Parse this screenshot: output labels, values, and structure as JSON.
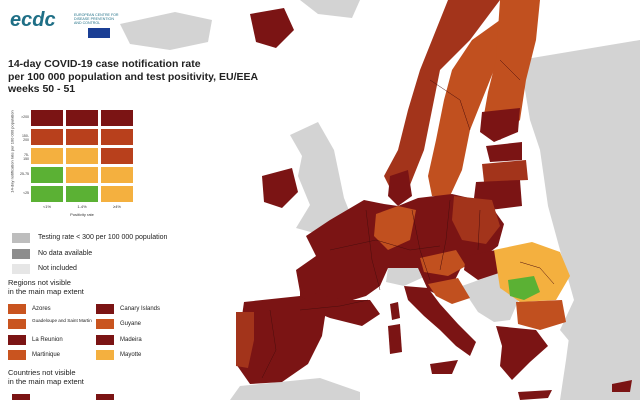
{
  "logo": {
    "word": "ecdc",
    "subtitle_lines": [
      "EUROPEAN CENTRE FOR",
      "DISEASE PREVENTION",
      "AND CONTROL"
    ],
    "flag_color": "#1b3f95"
  },
  "title_lines": [
    "14-day COVID-19 case notification rate",
    "per 100 000 population and test positivity, EU/EEA",
    "weeks 50 - 51"
  ],
  "matrix": {
    "y_axis_label": "14-day notification rate per 100 000 population",
    "y_ticks": [
      ">200",
      "150-200",
      "75-150",
      "25-75",
      "<25"
    ],
    "x_axis_label": "Positivity rate",
    "x_ticks": [
      "<1%",
      "1-4%",
      "≥4%"
    ],
    "colors": [
      [
        "#7b1414",
        "#7b1414",
        "#7b1414"
      ],
      [
        "#b8401c",
        "#b8401c",
        "#b8401c"
      ],
      [
        "#f4b03f",
        "#f4b03f",
        "#b8401c"
      ],
      [
        "#5bb134",
        "#f4b03f",
        "#f4b03f"
      ],
      [
        "#5bb134",
        "#5bb134",
        "#f4b03f"
      ]
    ]
  },
  "legend": [
    {
      "label": "Testing rate < 300 per 100 000 population",
      "color": "#bdbdbd"
    },
    {
      "label": "No data available",
      "color": "#8d8d8d"
    },
    {
      "label": "Not included",
      "color": "#e6e6e6"
    }
  ],
  "regions_heading": [
    "Regions not visible",
    "in the main map extent"
  ],
  "regions": [
    {
      "label": "Azores",
      "color": "#c9541f"
    },
    {
      "label": "Canary Islands",
      "color": "#7b1414"
    },
    {
      "label": "Guadeloupe and Saint Martin",
      "color": "#c9541f"
    },
    {
      "label": "Guyane",
      "color": "#c9541f"
    },
    {
      "label": "La Reunion",
      "color": "#7b1414"
    },
    {
      "label": "Madeira",
      "color": "#7b1414"
    },
    {
      "label": "Martinique",
      "color": "#c9541f"
    },
    {
      "label": "Mayotte",
      "color": "#f4b03f"
    }
  ],
  "countries_heading": [
    "Countries not visible",
    "in the main map extent"
  ],
  "map_colors": {
    "sea": "#ffffff",
    "non_eu": "#d3d3d3",
    "dark_red": "#7b1414",
    "red": "#a3341b",
    "orange_red": "#c1501f",
    "orange": "#f4b03f",
    "green": "#5bb134",
    "border": "#4b0d0d"
  }
}
